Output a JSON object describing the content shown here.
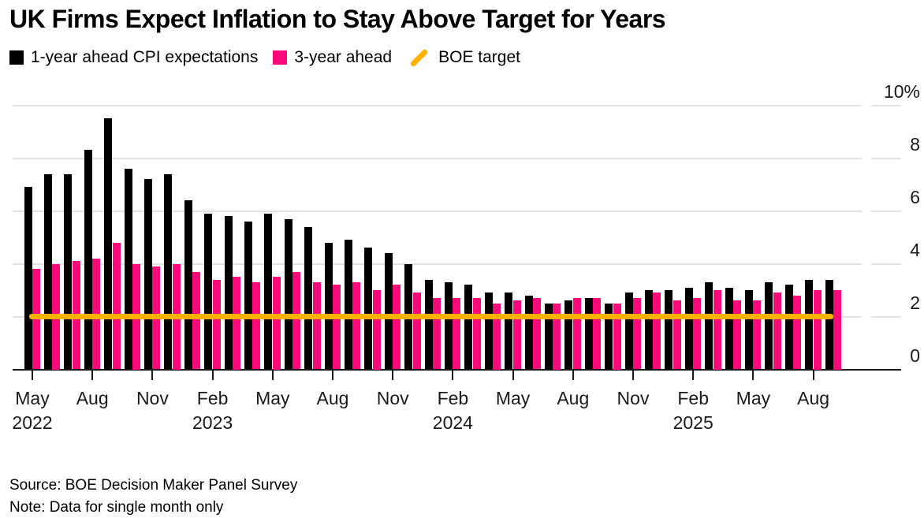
{
  "title": "UK Firms Expect Inflation to Stay Above Target for Years",
  "legend": [
    {
      "label": "1-year ahead CPI expectations",
      "swatch": "square",
      "color": "#000000"
    },
    {
      "label": "3-year ahead",
      "swatch": "square",
      "color": "#FA0A78"
    },
    {
      "label": "BOE target",
      "swatch": "slash",
      "color": "#FFB300"
    }
  ],
  "source_line": "Source: BOE Decision Maker Panel Survey",
  "note_line": "Note: Data for single month only",
  "colors": {
    "bar_1yr": "#000000",
    "bar_3yr": "#FA0A78",
    "target": "#FFB300",
    "gridline": "#E2E2E2",
    "axis_text": "#1A1A1A"
  },
  "chart_data": {
    "type": "bar",
    "title": "UK Firms Expect Inflation to Stay Above Target for Years",
    "ylabel": "%",
    "ylim": [
      0,
      10
    ],
    "yticks": [
      0,
      2,
      4,
      6,
      8,
      10
    ],
    "ytick_labels": [
      "0",
      "2",
      "4",
      "6",
      "8",
      "10%"
    ],
    "grid": true,
    "legend_position": "top",
    "x": [
      "May 2022",
      "Jun 2022",
      "Jul 2022",
      "Aug 2022",
      "Sep 2022",
      "Oct 2022",
      "Nov 2022",
      "Dec 2022",
      "Jan 2023",
      "Feb 2023",
      "Mar 2023",
      "Apr 2023",
      "May 2023",
      "Jun 2023",
      "Jul 2023",
      "Aug 2023",
      "Sep 2023",
      "Oct 2023",
      "Nov 2023",
      "Dec 2023",
      "Jan 2024",
      "Feb 2024",
      "Mar 2024",
      "Apr 2024",
      "May 2024",
      "Jun 2024",
      "Jul 2024",
      "Aug 2024",
      "Sep 2024",
      "Oct 2024",
      "Nov 2024",
      "Dec 2024",
      "Jan 2025",
      "Feb 2025",
      "Mar 2025",
      "Apr 2025",
      "May 2025",
      "Jun 2025",
      "Jul 2025",
      "Aug 2025",
      "Sep 2025"
    ],
    "series": [
      {
        "name": "1-year ahead CPI expectations",
        "color": "#000000",
        "values": [
          6.9,
          7.4,
          7.4,
          8.3,
          9.5,
          7.6,
          7.2,
          7.4,
          6.4,
          5.9,
          5.8,
          5.6,
          5.9,
          5.7,
          5.4,
          4.8,
          4.9,
          4.6,
          4.4,
          4.0,
          3.4,
          3.3,
          3.2,
          2.9,
          2.9,
          2.8,
          2.5,
          2.6,
          2.7,
          2.5,
          2.9,
          3.0,
          3.0,
          3.1,
          3.3,
          3.1,
          3.0,
          3.3,
          3.2,
          3.4,
          3.4
        ]
      },
      {
        "name": "3-year ahead",
        "color": "#FA0A78",
        "values": [
          3.8,
          4.0,
          4.1,
          4.2,
          4.8,
          4.0,
          3.9,
          4.0,
          3.7,
          3.4,
          3.5,
          3.3,
          3.5,
          3.7,
          3.3,
          3.2,
          3.3,
          3.0,
          3.2,
          2.9,
          2.7,
          2.7,
          2.7,
          2.5,
          2.6,
          2.7,
          2.5,
          2.7,
          2.7,
          2.5,
          2.7,
          2.9,
          2.6,
          2.7,
          3.0,
          2.6,
          2.6,
          2.9,
          2.8,
          3.0,
          3.0
        ]
      }
    ],
    "target_line": {
      "label": "BOE target",
      "value": 2,
      "color": "#FFB300"
    },
    "xticks": [
      {
        "month": "May",
        "year": "2022"
      },
      {
        "month": "Aug",
        "year": ""
      },
      {
        "month": "Nov",
        "year": ""
      },
      {
        "month": "Feb",
        "year": "2023"
      },
      {
        "month": "May",
        "year": ""
      },
      {
        "month": "Aug",
        "year": ""
      },
      {
        "month": "Nov",
        "year": ""
      },
      {
        "month": "Feb",
        "year": "2024"
      },
      {
        "month": "May",
        "year": ""
      },
      {
        "month": "Aug",
        "year": ""
      },
      {
        "month": "Nov",
        "year": ""
      },
      {
        "month": "Feb",
        "year": "2025"
      },
      {
        "month": "May",
        "year": ""
      },
      {
        "month": "Aug",
        "year": ""
      }
    ]
  }
}
